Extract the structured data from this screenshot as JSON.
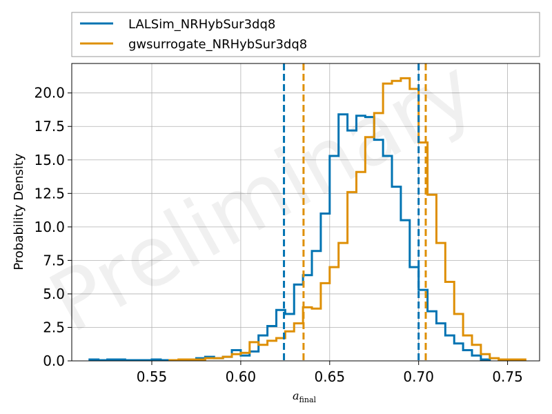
{
  "chart_data": {
    "type": "histogram",
    "xlabel_main": "a",
    "xlabel_sub": "final",
    "ylabel": "Probability Density",
    "watermark": "Preliminary",
    "xlim": [
      0.505,
      0.768
    ],
    "ylim": [
      0,
      22.2
    ],
    "xticks": [
      0.55,
      0.6,
      0.65,
      0.7,
      0.75
    ],
    "xtick_labels": [
      "0.55",
      "0.60",
      "0.65",
      "0.70",
      "0.75"
    ],
    "yticks": [
      0,
      2.5,
      5,
      7.5,
      10,
      12.5,
      15,
      17.5,
      20
    ],
    "ytick_labels": [
      "0.0",
      "2.5",
      "5.0",
      "7.5",
      "10.0",
      "12.5",
      "15.0",
      "17.5",
      "20.0"
    ],
    "grid": true,
    "legend_position": "top (above plot)",
    "series": [
      {
        "name": "LALSim_NRHybSur3dq8",
        "color": "#0173b2",
        "bin_edges": [
          0.515,
          0.52,
          0.525,
          0.53,
          0.535,
          0.54,
          0.545,
          0.55,
          0.555,
          0.56,
          0.565,
          0.57,
          0.575,
          0.58,
          0.585,
          0.59,
          0.595,
          0.6,
          0.605,
          0.61,
          0.615,
          0.62,
          0.625,
          0.63,
          0.635,
          0.64,
          0.645,
          0.65,
          0.655,
          0.66,
          0.665,
          0.67,
          0.675,
          0.68,
          0.685,
          0.69,
          0.695,
          0.7,
          0.705,
          0.71,
          0.715,
          0.72,
          0.725,
          0.73,
          0.735,
          0.74
        ],
        "densities": [
          0.1,
          0.05,
          0.1,
          0.1,
          0.05,
          0.05,
          0.05,
          0.1,
          0.05,
          0.05,
          0.05,
          0.1,
          0.2,
          0.3,
          0.2,
          0.3,
          0.8,
          0.4,
          0.7,
          1.9,
          2.6,
          3.8,
          3.5,
          5.7,
          6.4,
          8.2,
          11.0,
          15.3,
          18.4,
          17.2,
          18.3,
          18.2,
          16.5,
          15.3,
          13.0,
          10.5,
          7.0,
          5.3,
          3.7,
          2.8,
          1.9,
          1.3,
          0.8,
          0.4,
          0.1
        ]
      },
      {
        "name": "gwsurrogate_NRHybSur3dq8",
        "color": "#de8f05",
        "bin_edges": [
          0.56,
          0.565,
          0.57,
          0.575,
          0.58,
          0.585,
          0.59,
          0.595,
          0.6,
          0.605,
          0.61,
          0.615,
          0.62,
          0.625,
          0.63,
          0.635,
          0.64,
          0.645,
          0.65,
          0.655,
          0.66,
          0.665,
          0.67,
          0.675,
          0.68,
          0.685,
          0.69,
          0.695,
          0.7,
          0.705,
          0.71,
          0.715,
          0.72,
          0.725,
          0.73,
          0.735,
          0.74,
          0.745,
          0.75,
          0.755,
          0.76
        ],
        "densities": [
          0.05,
          0.1,
          0.1,
          0.1,
          0.2,
          0.2,
          0.3,
          0.5,
          0.6,
          1.4,
          1.2,
          1.5,
          1.7,
          2.2,
          2.8,
          4.0,
          3.9,
          5.8,
          7.0,
          8.8,
          12.6,
          14.1,
          16.7,
          18.5,
          20.7,
          20.9,
          21.1,
          20.3,
          16.3,
          12.4,
          8.8,
          5.9,
          3.5,
          1.9,
          1.2,
          0.5,
          0.2,
          0.1,
          0.1,
          0.1
        ]
      }
    ],
    "vlines": [
      {
        "series": "LALSim_NRHybSur3dq8",
        "x": 0.6243,
        "color": "#0173b2",
        "style": "dashed"
      },
      {
        "series": "LALSim_NRHybSur3dq8",
        "x": 0.7,
        "color": "#0173b2",
        "style": "dashed"
      },
      {
        "series": "gwsurrogate_NRHybSur3dq8",
        "x": 0.6353,
        "color": "#de8f05",
        "style": "dashed"
      },
      {
        "series": "gwsurrogate_NRHybSur3dq8",
        "x": 0.704,
        "color": "#de8f05",
        "style": "dashed"
      }
    ]
  }
}
